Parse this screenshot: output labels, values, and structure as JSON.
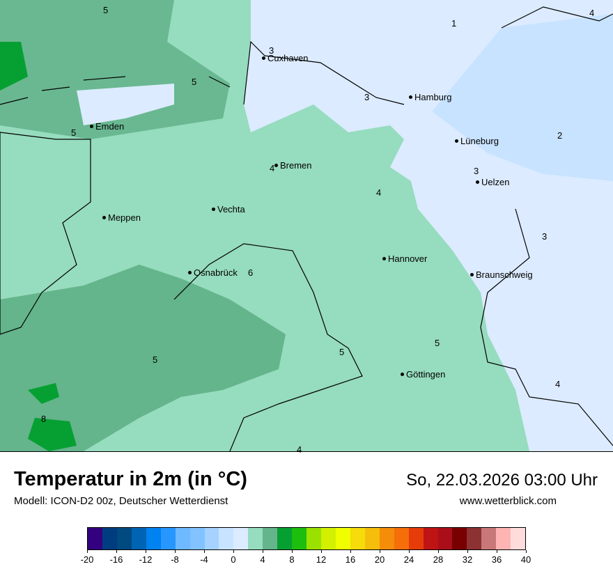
{
  "title": "Temperatur in 2m (in °C)",
  "model": "Modell: ICON-D2 00z, Deutscher Wetterdienst",
  "datetime": "So, 22.03.2026 03:00 Uhr",
  "website": "www.wetterblick.com",
  "cities": [
    {
      "name": "Cuxhaven"
    },
    {
      "name": "Hamburg"
    },
    {
      "name": "Emden"
    },
    {
      "name": "Lüneburg"
    },
    {
      "name": "Bremen"
    },
    {
      "name": "Uelzen"
    },
    {
      "name": "Meppen"
    },
    {
      "name": "Vechta"
    },
    {
      "name": "Hannover"
    },
    {
      "name": "Osnabrück"
    },
    {
      "name": "Braunschweig"
    },
    {
      "name": "Göttingen"
    }
  ],
  "contour_labels": [
    "5",
    "1",
    "4",
    "3",
    "5",
    "3",
    "5",
    "2",
    "4",
    "3",
    "4",
    "3",
    "6",
    "5",
    "5",
    "4",
    "5",
    "8",
    "4"
  ],
  "colorbar": {
    "ticks": [
      "-20",
      "-16",
      "-12",
      "-8",
      "-4",
      "0",
      "4",
      "8",
      "12",
      "16",
      "20",
      "24",
      "28",
      "32",
      "36",
      "40"
    ],
    "colors": [
      "#330080",
      "#003c80",
      "#004a80",
      "#0064b4",
      "#0082f0",
      "#2896ff",
      "#6eb9ff",
      "#82c3ff",
      "#a5d2ff",
      "#c8e3ff",
      "#dcebff",
      "#96dcbe",
      "#64b48c",
      "#06a032",
      "#1ebe0f",
      "#9be100",
      "#d2f000",
      "#f0ff00",
      "#f5dc0a",
      "#f5be0a",
      "#f58c0a",
      "#f56e0a",
      "#e63c0a",
      "#be1414",
      "#aa0f19",
      "#780000",
      "#8c3232",
      "#c87878",
      "#ffb4b4",
      "#ffdcdc"
    ]
  }
}
